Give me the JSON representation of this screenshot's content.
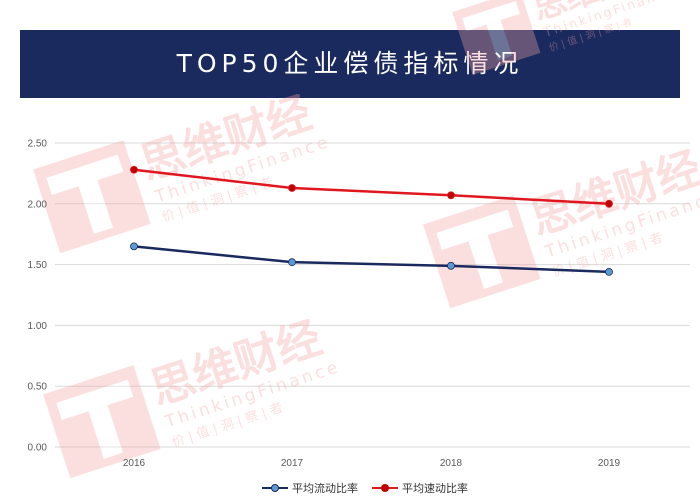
{
  "header": {
    "title": "TOP50企业偿债指标情况"
  },
  "watermark": {
    "brand": "思维财经",
    "sub": "ThinkingFinance",
    "tag": "价 | 值 | 洞 | 察 | 者"
  },
  "colors": {
    "banner": "#1b2a5e",
    "series1": "#1b2a5e",
    "series1_marker": "#5b9bd5",
    "series2": "#e0171e",
    "series2_marker": "#c00000",
    "grid": "#d9d9d9",
    "watermark": "#f4a6a6"
  },
  "chart_data": {
    "type": "line",
    "categories": [
      "2016",
      "2017",
      "2018",
      "2019"
    ],
    "series": [
      {
        "name": "平均流动比率",
        "values": [
          1.65,
          1.52,
          1.49,
          1.44
        ]
      },
      {
        "name": "平均速动比率",
        "values": [
          2.28,
          2.13,
          2.07,
          2.0
        ]
      }
    ],
    "y_ticks": [
      "0.00",
      "0.50",
      "1.00",
      "1.50",
      "2.00",
      "2.50"
    ],
    "ylim": [
      0,
      2.5
    ],
    "grid": true,
    "legend": "bottom"
  }
}
